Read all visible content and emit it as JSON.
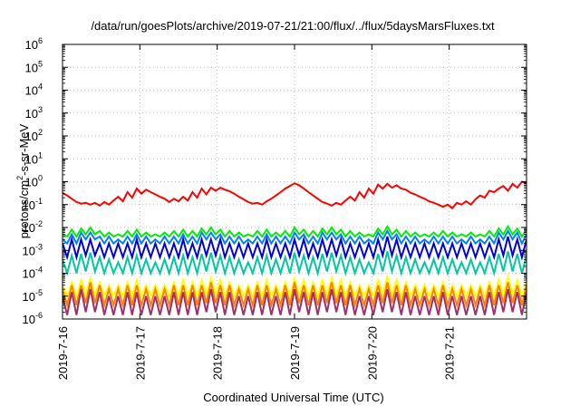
{
  "chart_data": {
    "type": "line",
    "title": "/data/run/goesPlots/archive/2019-07-21/21:00/flux/../flux/5daysMarsFluxes.txt",
    "xlabel": "Coordinated Universal Time (UTC)",
    "ylabel": "protons/cm²-s-sr-MeV",
    "ylabel_parts": {
      "pre": "protons/cm",
      "sup": "2",
      "post": "-s-sr-MeV"
    },
    "y_scale": "log",
    "ylim": [
      1e-06,
      1000000.0
    ],
    "y_ticks": [
      {
        "base": "10",
        "exp": "-6"
      },
      {
        "base": "10",
        "exp": "-5"
      },
      {
        "base": "10",
        "exp": "-4"
      },
      {
        "base": "10",
        "exp": "-3"
      },
      {
        "base": "10",
        "exp": "-2"
      },
      {
        "base": "10",
        "exp": "-1"
      },
      {
        "base": "10",
        "exp": "0"
      },
      {
        "base": "10",
        "exp": "1"
      },
      {
        "base": "10",
        "exp": "2"
      },
      {
        "base": "10",
        "exp": "3"
      },
      {
        "base": "10",
        "exp": "4"
      },
      {
        "base": "10",
        "exp": "5"
      },
      {
        "base": "10",
        "exp": "6"
      }
    ],
    "x_range": [
      "2019-07-16",
      "2019-07-22"
    ],
    "x_ticks": [
      "2019-7-16",
      "2019-7-17",
      "2019-7-18",
      "2019-7-19",
      "2019-7-20",
      "2019-7-21"
    ],
    "grid": true,
    "series": [
      {
        "color": "#ff0000",
        "values": [
          0.32,
          0.25,
          0.18,
          0.13,
          0.11,
          0.12,
          0.1,
          0.12,
          0.09,
          0.13,
          0.1,
          0.15,
          0.22,
          0.14,
          0.35,
          0.2,
          0.5,
          0.3,
          0.45,
          0.35,
          0.28,
          0.22,
          0.18,
          0.13,
          0.18,
          0.14,
          0.22,
          0.15,
          0.35,
          0.2,
          0.5,
          0.28,
          0.55,
          0.4,
          0.55,
          0.45,
          0.38,
          0.3,
          0.22,
          0.17,
          0.13,
          0.11,
          0.12,
          0.1,
          0.14,
          0.18,
          0.25,
          0.35,
          0.5,
          0.65,
          0.85,
          0.7,
          0.5,
          0.35,
          0.25,
          0.18,
          0.13,
          0.11,
          0.09,
          0.12,
          0.1,
          0.15,
          0.22,
          0.15,
          0.35,
          0.2,
          0.5,
          0.3,
          0.75,
          0.5,
          0.8,
          0.55,
          0.7,
          0.5,
          0.45,
          0.33,
          0.28,
          0.22,
          0.18,
          0.14,
          0.12,
          0.1,
          0.08,
          0.1,
          0.07,
          0.12,
          0.1,
          0.14,
          0.1,
          0.17,
          0.25,
          0.2,
          0.4,
          0.35,
          0.5,
          0.65,
          0.4,
          0.8,
          0.55,
          1.0,
          0.85
        ]
      },
      {
        "color": "#00ee00",
        "values": [
          0.005,
          0.004,
          0.008,
          0.004,
          0.009,
          0.005,
          0.01,
          0.005,
          0.007,
          0.004,
          0.006,
          0.004,
          0.005,
          0.004,
          0.007,
          0.004,
          0.008,
          0.004,
          0.006,
          0.004,
          0.005,
          0.004,
          0.006,
          0.004,
          0.007,
          0.004,
          0.008,
          0.004,
          0.007,
          0.004,
          0.009,
          0.005,
          0.01,
          0.005,
          0.008,
          0.004,
          0.007,
          0.004,
          0.006,
          0.004,
          0.005,
          0.004,
          0.007,
          0.004,
          0.008,
          0.004,
          0.006,
          0.004,
          0.007,
          0.004,
          0.01,
          0.005,
          0.008,
          0.004,
          0.007,
          0.004,
          0.009,
          0.005,
          0.01,
          0.005,
          0.008,
          0.004,
          0.007,
          0.004,
          0.006,
          0.004,
          0.005,
          0.004,
          0.009,
          0.005,
          0.011,
          0.005,
          0.008,
          0.004,
          0.007,
          0.004,
          0.006,
          0.004,
          0.005,
          0.004,
          0.006,
          0.004,
          0.007,
          0.004,
          0.006,
          0.004,
          0.005,
          0.004,
          0.006,
          0.004,
          0.005,
          0.004,
          0.007,
          0.004,
          0.009,
          0.005,
          0.011,
          0.005,
          0.009,
          0.004,
          0.008
        ]
      },
      {
        "color": "#0080ff",
        "values": [
          0.003,
          0.002,
          0.005,
          0.002,
          0.006,
          0.003,
          0.006,
          0.003,
          0.004,
          0.002,
          0.004,
          0.002,
          0.003,
          0.002,
          0.004,
          0.002,
          0.005,
          0.002,
          0.004,
          0.002,
          0.003,
          0.002,
          0.004,
          0.002,
          0.004,
          0.002,
          0.005,
          0.002,
          0.004,
          0.002,
          0.006,
          0.003,
          0.006,
          0.003,
          0.005,
          0.002,
          0.004,
          0.002,
          0.004,
          0.002,
          0.003,
          0.002,
          0.004,
          0.002,
          0.005,
          0.002,
          0.004,
          0.002,
          0.004,
          0.002,
          0.006,
          0.003,
          0.005,
          0.002,
          0.004,
          0.002,
          0.006,
          0.003,
          0.006,
          0.003,
          0.005,
          0.002,
          0.004,
          0.002,
          0.004,
          0.002,
          0.003,
          0.002,
          0.006,
          0.003,
          0.007,
          0.003,
          0.005,
          0.002,
          0.004,
          0.002,
          0.004,
          0.002,
          0.003,
          0.002,
          0.004,
          0.002,
          0.004,
          0.002,
          0.004,
          0.002,
          0.003,
          0.002,
          0.004,
          0.002,
          0.003,
          0.002,
          0.004,
          0.002,
          0.006,
          0.003,
          0.007,
          0.003,
          0.006,
          0.002,
          0.005
        ]
      },
      {
        "color": "#0000dd",
        "values": [
          0.002,
          0.0005,
          0.003,
          0.0005,
          0.003,
          0.0006,
          0.003,
          0.0006,
          0.002,
          0.0005,
          0.002,
          0.0005,
          0.002,
          0.0005,
          0.002,
          0.0005,
          0.003,
          0.0005,
          0.002,
          0.0005,
          0.002,
          0.0005,
          0.002,
          0.0005,
          0.002,
          0.0005,
          0.003,
          0.0005,
          0.002,
          0.0005,
          0.003,
          0.0006,
          0.003,
          0.0006,
          0.003,
          0.0005,
          0.002,
          0.0005,
          0.002,
          0.0005,
          0.002,
          0.0005,
          0.002,
          0.0005,
          0.003,
          0.0005,
          0.002,
          0.0005,
          0.002,
          0.0005,
          0.003,
          0.0006,
          0.003,
          0.0005,
          0.002,
          0.0005,
          0.003,
          0.0006,
          0.003,
          0.0006,
          0.003,
          0.0005,
          0.002,
          0.0005,
          0.002,
          0.0005,
          0.002,
          0.0005,
          0.003,
          0.0006,
          0.004,
          0.0006,
          0.003,
          0.0005,
          0.002,
          0.0005,
          0.002,
          0.0005,
          0.002,
          0.0005,
          0.002,
          0.0005,
          0.002,
          0.0005,
          0.002,
          0.0005,
          0.002,
          0.0005,
          0.002,
          0.0005,
          0.002,
          0.0005,
          0.002,
          0.0005,
          0.003,
          0.0006,
          0.004,
          0.0006,
          0.003,
          0.0005,
          0.003
        ]
      },
      {
        "color": "#00c8a0",
        "values": [
          0.0004,
          0.0001,
          0.0006,
          0.0001,
          0.0007,
          0.00012,
          0.0008,
          0.00012,
          0.0005,
          0.0001,
          0.0004,
          0.0001,
          0.0003,
          0.0001,
          0.0005,
          0.0001,
          0.0006,
          0.0001,
          0.0004,
          0.0001,
          0.0003,
          0.0001,
          0.0004,
          0.0001,
          0.0005,
          0.0001,
          0.0006,
          0.0001,
          0.0005,
          0.0001,
          0.0007,
          0.00012,
          0.0008,
          0.00012,
          0.0006,
          0.0001,
          0.0005,
          0.0001,
          0.0004,
          0.0001,
          0.0003,
          0.0001,
          0.0005,
          0.0001,
          0.0006,
          0.0001,
          0.0004,
          0.0001,
          0.0005,
          0.0001,
          0.0008,
          0.00012,
          0.0006,
          0.0001,
          0.0005,
          0.0001,
          0.0007,
          0.00012,
          0.0008,
          0.00012,
          0.0006,
          0.0001,
          0.0005,
          0.0001,
          0.0004,
          0.0001,
          0.0003,
          0.0001,
          0.0007,
          0.00012,
          0.0009,
          0.00012,
          0.0006,
          0.0001,
          0.0005,
          0.0001,
          0.0004,
          0.0001,
          0.0003,
          0.0001,
          0.0004,
          0.0001,
          0.0005,
          0.0001,
          0.0004,
          0.0001,
          0.0003,
          0.0001,
          0.0004,
          0.0001,
          0.0003,
          0.0001,
          0.0005,
          0.0001,
          0.0007,
          0.00012,
          0.0009,
          0.00012,
          0.0007,
          0.0001,
          0.0006
        ]
      },
      {
        "color": "#ffff00",
        "values": [
          3e-05,
          1e-05,
          4e-05,
          1e-05,
          5e-05,
          1.2e-05,
          6e-05,
          1.2e-05,
          4e-05,
          1e-05,
          3e-05,
          1e-05,
          3e-05,
          1e-05,
          4e-05,
          1e-05,
          5e-05,
          1e-05,
          3e-05,
          1e-05,
          3e-05,
          1e-05,
          3e-05,
          1e-05,
          4e-05,
          1e-05,
          5e-05,
          1e-05,
          4e-05,
          1e-05,
          5e-05,
          1.2e-05,
          6e-05,
          1.2e-05,
          5e-05,
          1e-05,
          4e-05,
          1e-05,
          3e-05,
          1e-05,
          3e-05,
          1e-05,
          4e-05,
          1e-05,
          5e-05,
          1e-05,
          3e-05,
          1e-05,
          4e-05,
          1e-05,
          6e-05,
          1.2e-05,
          5e-05,
          1e-05,
          4e-05,
          1e-05,
          5e-05,
          1.2e-05,
          6e-05,
          1.2e-05,
          5e-05,
          1e-05,
          4e-05,
          1e-05,
          3e-05,
          1e-05,
          3e-05,
          1e-05,
          5e-05,
          1.2e-05,
          7e-05,
          1.2e-05,
          5e-05,
          1e-05,
          4e-05,
          1e-05,
          3e-05,
          1e-05,
          3e-05,
          1e-05,
          3e-05,
          1e-05,
          4e-05,
          1e-05,
          3e-05,
          1e-05,
          3e-05,
          1e-05,
          3e-05,
          1e-05,
          3e-05,
          1e-05,
          4e-05,
          1e-05,
          5e-05,
          1.2e-05,
          7e-05,
          1.2e-05,
          5e-05,
          1e-05,
          4e-05
        ]
      },
      {
        "color": "#ff8000",
        "values": [
          2e-05,
          4e-06,
          3e-05,
          4e-06,
          3e-05,
          5e-06,
          4e-05,
          5e-06,
          3e-05,
          4e-06,
          2e-05,
          4e-06,
          2e-05,
          4e-06,
          3e-05,
          4e-06,
          3e-05,
          4e-06,
          2e-05,
          4e-06,
          2e-05,
          4e-06,
          2e-05,
          4e-06,
          3e-05,
          4e-06,
          3e-05,
          4e-06,
          3e-05,
          4e-06,
          3e-05,
          5e-06,
          4e-05,
          5e-06,
          3e-05,
          4e-06,
          3e-05,
          4e-06,
          2e-05,
          4e-06,
          2e-05,
          4e-06,
          3e-05,
          4e-06,
          3e-05,
          4e-06,
          2e-05,
          4e-06,
          3e-05,
          4e-06,
          4e-05,
          5e-06,
          3e-05,
          4e-06,
          3e-05,
          4e-06,
          3e-05,
          5e-06,
          4e-05,
          5e-06,
          3e-05,
          4e-06,
          3e-05,
          4e-06,
          2e-05,
          4e-06,
          2e-05,
          4e-06,
          3e-05,
          5e-06,
          4e-05,
          5e-06,
          3e-05,
          4e-06,
          3e-05,
          4e-06,
          2e-05,
          4e-06,
          2e-05,
          4e-06,
          2e-05,
          4e-06,
          3e-05,
          4e-06,
          2e-05,
          4e-06,
          2e-05,
          4e-06,
          2e-05,
          4e-06,
          2e-05,
          4e-06,
          3e-05,
          4e-06,
          3e-05,
          5e-06,
          4e-05,
          5e-06,
          3e-05,
          4e-06,
          3e-05
        ]
      },
      {
        "color": "#a0306a",
        "values": [
          1e-05,
          1.5e-06,
          1.5e-05,
          1.5e-06,
          2e-05,
          2e-06,
          2e-05,
          2e-06,
          1.5e-05,
          1.5e-06,
          1e-05,
          1.5e-06,
          1e-05,
          1.5e-06,
          1.5e-05,
          1.5e-06,
          1.5e-05,
          1.5e-06,
          1e-05,
          1.5e-06,
          1e-05,
          1.5e-06,
          1e-05,
          1.5e-06,
          1.5e-05,
          1.5e-06,
          1.5e-05,
          1.5e-06,
          1.5e-05,
          1.5e-06,
          1.5e-05,
          2e-06,
          2e-05,
          2e-06,
          1.5e-05,
          1.5e-06,
          1.5e-05,
          1.5e-06,
          1e-05,
          1.5e-06,
          1e-05,
          1.5e-06,
          1.5e-05,
          1.5e-06,
          1.5e-05,
          1.5e-06,
          1e-05,
          1.5e-06,
          1.5e-05,
          1.5e-06,
          2e-05,
          2e-06,
          1.5e-05,
          1.5e-06,
          1.5e-05,
          1.5e-06,
          1.5e-05,
          2e-06,
          2e-05,
          2e-06,
          1.5e-05,
          1.5e-06,
          1.5e-05,
          1.5e-06,
          1e-05,
          1.5e-06,
          1e-05,
          1.5e-06,
          1.5e-05,
          2e-06,
          2e-05,
          2e-06,
          1.5e-05,
          1.5e-06,
          1.5e-05,
          1.5e-06,
          1e-05,
          1.5e-06,
          1e-05,
          1.5e-06,
          1e-05,
          1.5e-06,
          1.5e-05,
          1.5e-06,
          1e-05,
          1.5e-06,
          1e-05,
          1.5e-06,
          1e-05,
          1.5e-06,
          1e-05,
          1.5e-06,
          1.5e-05,
          1.5e-06,
          1.5e-05,
          2e-06,
          2e-05,
          2e-06,
          1.5e-05,
          1.5e-06,
          1.5e-05
        ]
      }
    ]
  }
}
